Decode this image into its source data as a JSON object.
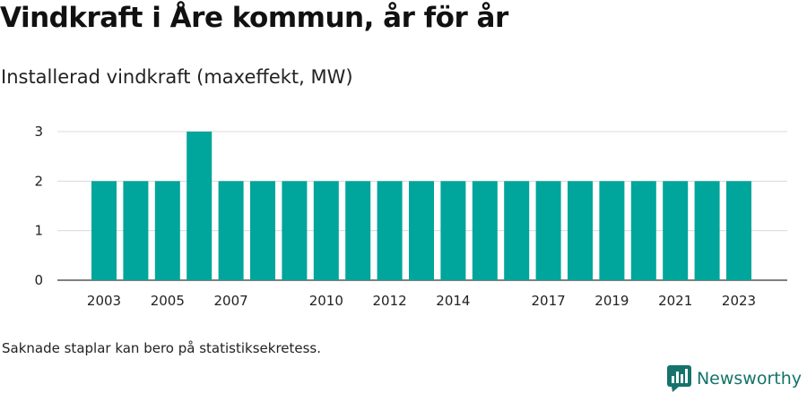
{
  "title": "Vindkraft i Åre kommun, år för år",
  "subtitle": "Installerad vindkraft (maxeffekt, MW)",
  "note": "Saknade staplar kan bero på statistiksekretess.",
  "brand": {
    "name": "Newsworthy",
    "icon": "newsworthy-logo-icon",
    "color": "#16736b"
  },
  "chart_data": {
    "type": "bar",
    "categories": [
      "2003",
      "2004",
      "2005",
      "2006",
      "2007",
      "2008",
      "2009",
      "2010",
      "2011",
      "2012",
      "2013",
      "2014",
      "2015",
      "2016",
      "2017",
      "2018",
      "2019",
      "2020",
      "2021",
      "2022",
      "2023"
    ],
    "values": [
      2,
      2,
      2,
      3,
      2,
      2,
      2,
      2,
      2,
      2,
      2,
      2,
      2,
      2,
      2,
      2,
      2,
      2,
      2,
      2,
      2
    ],
    "x_tick_labels": [
      "2003",
      "2005",
      "2007",
      "2010",
      "2012",
      "2014",
      "2017",
      "2019",
      "2021",
      "2023"
    ],
    "y_ticks": [
      0,
      1,
      2,
      3
    ],
    "ylim": [
      0,
      3
    ],
    "xlabel": "",
    "ylabel": "",
    "grid": true,
    "bar_color": "#00a59b"
  }
}
